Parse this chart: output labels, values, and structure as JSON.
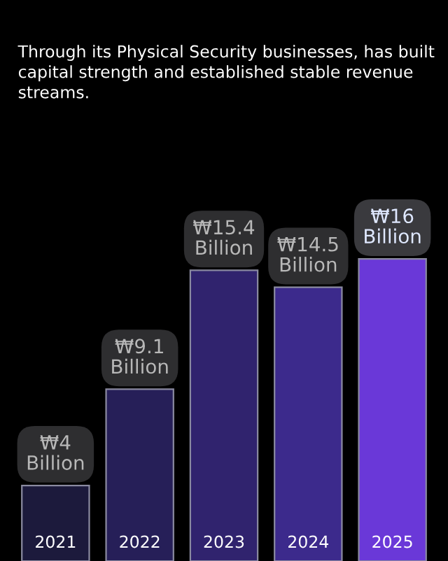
{
  "chart_data": {
    "type": "bar",
    "annotations": [
      "Through its Physical Security businesses, has built capital strength and established stable revenue streams."
    ],
    "categories": [
      "2021",
      "2022",
      "2023",
      "2024",
      "2025"
    ],
    "values": [
      4,
      9.1,
      15.4,
      14.5,
      16
    ],
    "value_labels": [
      "₩4\nBillion",
      "₩9.1\nBillion",
      "₩15.4\nBillion",
      "₩14.5\nBillion",
      "₩16\nBillion"
    ],
    "colors": [
      "#1c1a3c",
      "#261f58",
      "#30236e",
      "#3c2a8c",
      "#6a38d8"
    ]
  }
}
